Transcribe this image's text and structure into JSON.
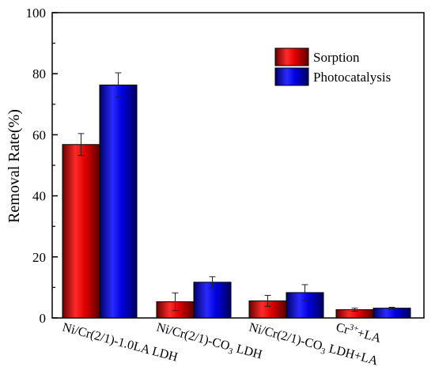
{
  "chart_data": {
    "type": "bar",
    "title": "",
    "xlabel": "",
    "ylabel": "Removal Rate(%)",
    "ylim": [
      0,
      100
    ],
    "yticks": [
      "0",
      "20",
      "40",
      "60",
      "80",
      "100"
    ],
    "grid": false,
    "legend_position": "top-right",
    "categories": [
      {
        "main": "Ni/Cr(2/1)-1.0LA LDH",
        "sub": "",
        "tail": ""
      },
      {
        "main": "Ni/Cr(2/1)-CO",
        "sub": "3",
        "tail": " LDH"
      },
      {
        "main": "Ni/Cr(2/1)-CO",
        "sub": "3",
        "tail": " LDH+LA"
      },
      {
        "main": "Cr",
        "sup": "3+",
        "tail": "+LA"
      }
    ],
    "series": [
      {
        "name": "Sorption",
        "color": "#d40000",
        "values": [
          56.8,
          5.3,
          5.6,
          2.7
        ],
        "errors": [
          3.6,
          2.9,
          1.8,
          0.5
        ]
      },
      {
        "name": "Photocatalysis",
        "color": "#0000d0",
        "values": [
          76.3,
          11.7,
          8.3,
          3.2
        ],
        "errors": [
          4.0,
          1.8,
          2.6,
          0.3
        ]
      }
    ]
  }
}
